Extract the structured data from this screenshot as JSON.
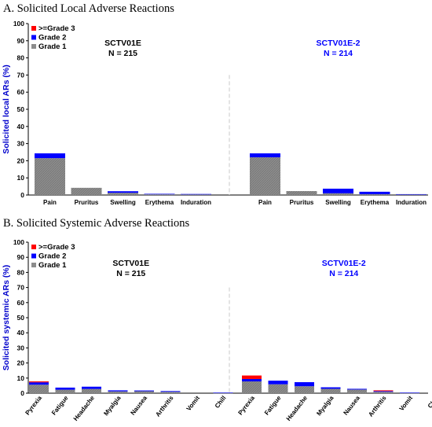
{
  "colors": {
    "grade1": "#8c8c8c",
    "grade2": "#0000ff",
    "grade3": "#ff0000",
    "axis_title": "#0000cc",
    "group2_label": "#0000ff",
    "divider": "#c8c8c8"
  },
  "chart_data": [
    {
      "type": "bar",
      "stacked": true,
      "title": "A. Solicited Local Adverse Reactions",
      "ylabel": "Solicited local ARs (%)",
      "ylim": [
        0,
        100
      ],
      "yticks": [
        0,
        10,
        20,
        30,
        40,
        50,
        60,
        70,
        80,
        90,
        100
      ],
      "legend": [
        "Grade 1",
        "Grade 2",
        ">=Grade 3"
      ],
      "legend_position": "top-left",
      "grid": false,
      "groups": [
        {
          "name": "SCTV01E",
          "n_label": "N = 215",
          "categories": [
            "Pain",
            "Pruritus",
            "Swelling",
            "Erythema",
            "Induration"
          ],
          "series": [
            {
              "name": "Grade 1",
              "values": [
                21.5,
                4.2,
                1.3,
                0.4,
                0.4
              ]
            },
            {
              "name": "Grade 2",
              "values": [
                2.8,
                0,
                0.9,
                0.3,
                0.2
              ]
            },
            {
              "name": ">=Grade 3",
              "values": [
                0,
                0,
                0,
                0,
                0
              ]
            }
          ]
        },
        {
          "name": "SCTV01E-2",
          "n_label": "N = 214",
          "categories": [
            "Pain",
            "Pruritus",
            "Swelling",
            "Erythema",
            "Induration"
          ],
          "series": [
            {
              "name": "Grade 1",
              "values": [
                22.0,
                2.3,
                1.0,
                0.5,
                0.3
              ]
            },
            {
              "name": "Grade 2",
              "values": [
                2.3,
                0,
                2.7,
                1.4,
                0.2
              ]
            },
            {
              "name": ">=Grade 3",
              "values": [
                0,
                0,
                0,
                0,
                0
              ]
            }
          ]
        }
      ]
    },
    {
      "type": "bar",
      "stacked": true,
      "title": "B. Solicited Systemic Adverse Reactions",
      "ylabel": "Solicited systemic ARs (%)",
      "ylim": [
        0,
        100
      ],
      "yticks": [
        0,
        10,
        20,
        30,
        40,
        50,
        60,
        70,
        80,
        90,
        100
      ],
      "legend": [
        "Grade 1",
        "Grade 2",
        ">=Grade 3"
      ],
      "legend_position": "top-left",
      "grid": false,
      "groups": [
        {
          "name": "SCTV01E",
          "n_label": "N = 215",
          "categories": [
            "Pyrexia",
            "Fatigue",
            "Headache",
            "Myalgia",
            "Nausea",
            "Arthritis",
            "Vomit",
            "Chill"
          ],
          "series": [
            {
              "name": "Grade 1",
              "values": [
                5.6,
                2.3,
                2.8,
                1.2,
                1.3,
                0.9,
                0,
                0.2
              ]
            },
            {
              "name": "Grade 2",
              "values": [
                1.6,
                1.4,
                1.5,
                0.7,
                0.5,
                0.5,
                0,
                0.2
              ]
            },
            {
              "name": ">=Grade 3",
              "values": [
                0.6,
                0,
                0,
                0,
                0,
                0,
                0,
                0
              ]
            }
          ]
        },
        {
          "name": "SCTV01E-2",
          "n_label": "N = 214",
          "categories": [
            "Pyrexia",
            "Fatigue",
            "Headache",
            "Myalgia",
            "Nausea",
            "Arthritis",
            "Vomit",
            "Chill"
          ],
          "series": [
            {
              "name": "Grade 1",
              "values": [
                7.8,
                5.9,
                4.6,
                2.9,
                2.4,
                0.9,
                0.2,
                0
              ]
            },
            {
              "name": "Grade 2",
              "values": [
                1.6,
                2.4,
                2.7,
                1.0,
                0.5,
                0.5,
                0.2,
                0
              ]
            },
            {
              "name": ">=Grade 3",
              "values": [
                2.3,
                0,
                0,
                0,
                0,
                0.5,
                0,
                0
              ]
            }
          ]
        }
      ]
    }
  ]
}
